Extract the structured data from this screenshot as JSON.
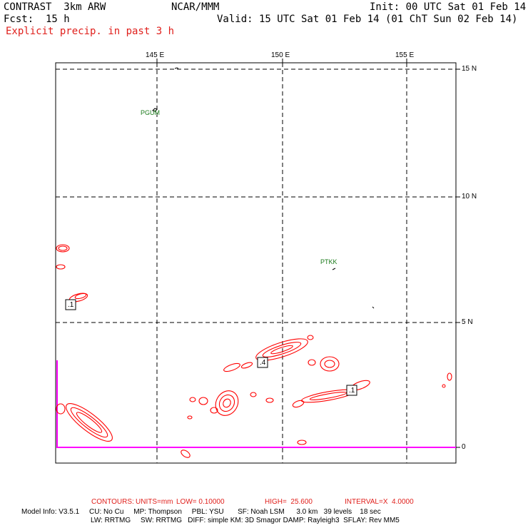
{
  "header": {
    "model": "CONTRAST  3km ARW",
    "org": "NCAR/MMM",
    "init": "Init: 00 UTC Sat 01 Feb 14",
    "fcst_label": "Fcst:",
    "fcst_value": "15 h",
    "valid": "Valid: 15 UTC Sat 01 Feb 14 (01 ChT Sun 02 Feb 14)",
    "field": "Explicit precip. in past 3 h"
  },
  "axes": {
    "lon_ticks": [
      "145 E",
      "150 E",
      "155 E"
    ],
    "lat_ticks": [
      "15 N",
      "10 N",
      "5 N",
      "0"
    ]
  },
  "stations": [
    "PGUM",
    "PTKK"
  ],
  "contour_labels": [
    ".1",
    ".1",
    ".4"
  ],
  "contours_line": {
    "prefix": "CONTOURS:",
    "units": "UNITS=mm",
    "low": "LOW= 0.10000",
    "high": "HIGH=  25.600",
    "interval": "INTERVAL=X  4.0000"
  },
  "model_info": {
    "line1": "Model Info: V3.5.1     CU: No Cu     MP: Thompson     PBL: YSU       SF: Noah LSM      3.0 km   39 levels    18 sec",
    "line2": "LW: RRTMG     SW: RRTMG   DIFF: simple KM: 3D Smagor DAMP: Rayleigh3  SFLAY: Rev MM5"
  },
  "colors": {
    "contour": "#ff0000",
    "label_text": "#e0201c",
    "boundary": "#ff00ff",
    "station": "#1a7a1a",
    "grid": "#000000"
  }
}
